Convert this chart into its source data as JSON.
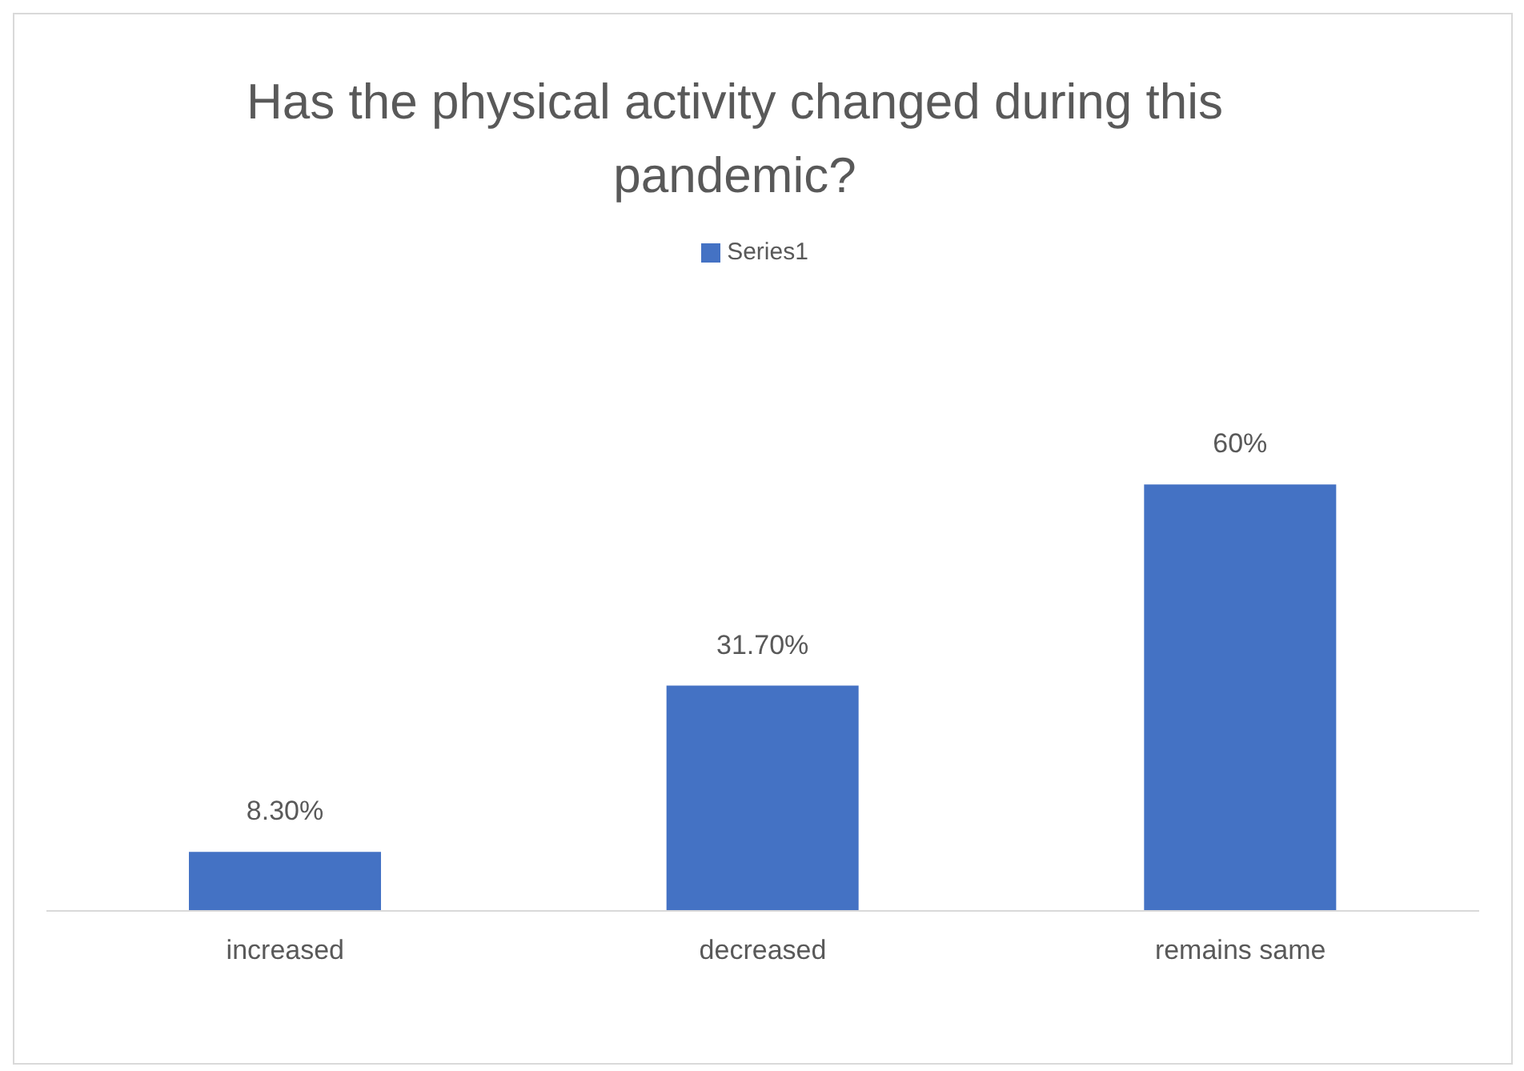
{
  "chart_data": {
    "type": "bar",
    "title": "Has the physical activity changed during this pandemic?",
    "categories": [
      "increased",
      "decreased",
      "remains same"
    ],
    "series": [
      {
        "name": "Series1",
        "color": "#4472c4",
        "values": [
          8.3,
          31.7,
          60
        ],
        "value_labels": [
          "8.30%",
          "31.70%",
          "60%"
        ]
      }
    ],
    "legend": "top",
    "grid": false
  }
}
